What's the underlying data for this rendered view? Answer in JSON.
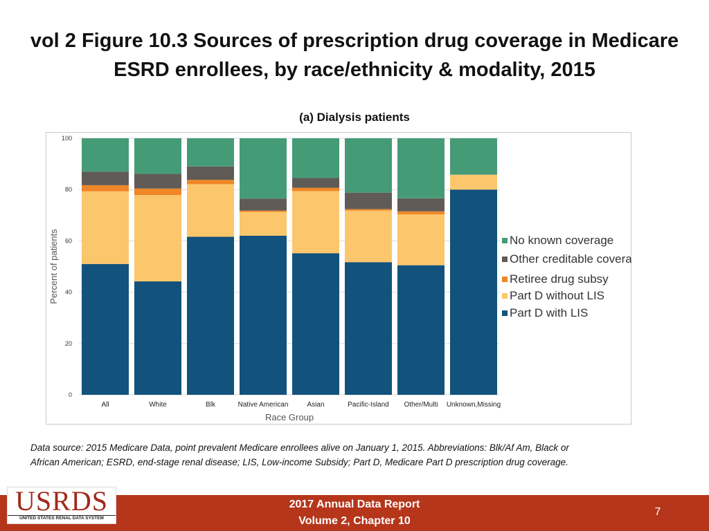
{
  "slide": {
    "title_line1": "vol 2 Figure 10.3 Sources of prescription drug coverage in Medicare",
    "title_line2": "ESRD enrollees, by race/ethnicity & modality, 2015",
    "footnote_line1": "Data source: 2015 Medicare Data, point prevalent Medicare enrollees alive on January 1, 2015. Abbreviations: Blk/Af Am, Black or",
    "footnote_line2": "African American; ESRD, end-stage renal disease; LIS, Low-income Subsidy; Part D, Medicare Part D prescription drug coverage."
  },
  "footer": {
    "logo_text": "USRDS",
    "logo_subtext": "UNITED STATES RENAL DATA SYSTEM",
    "report_line1": "2017 Annual Data Report",
    "report_line2": "Volume 2, Chapter 10",
    "page_number": "7",
    "bar_color": "#b5361b"
  },
  "chart_data": {
    "type": "bar",
    "stacked": true,
    "title": "(a) Dialysis patients",
    "xlabel": "Race Group",
    "ylabel": "Percent of patients",
    "ylim": [
      0,
      100
    ],
    "yticks": [
      0,
      20,
      40,
      60,
      80,
      100
    ],
    "legend_position": "right",
    "categories": [
      "All",
      "White",
      "Blk",
      "Native American",
      "Asian",
      "Pacific-Island",
      "Other/Multi",
      "Unknown,Missing"
    ],
    "series": [
      {
        "name": "Part D with LIS",
        "color": "#12527c",
        "values": [
          51,
          44.2,
          61.6,
          62,
          55.2,
          51.7,
          50.5,
          80
        ]
      },
      {
        "name": "Part D without LIS",
        "color": "#fcc66d",
        "values": [
          28.3,
          33.7,
          20.5,
          9.3,
          24.2,
          20.1,
          19.8,
          5.8
        ]
      },
      {
        "name": "Retiree drug subsidy",
        "color": "#ef8727",
        "values": [
          2.4,
          2.5,
          1.7,
          0.5,
          1.3,
          0.6,
          1.2,
          0
        ]
      },
      {
        "name": "Other creditable coverage",
        "color": "#605b57",
        "values": [
          5.3,
          5.7,
          5.2,
          4.7,
          3.8,
          6.4,
          5.1,
          0
        ]
      },
      {
        "name": "No known coverage",
        "color": "#469b77",
        "values": [
          13,
          13.9,
          11,
          23.5,
          15.5,
          21.2,
          23.4,
          14.2
        ]
      }
    ],
    "legend_labels": [
      "No known coverage",
      "Other creditable coverage",
      "Retiree drug subsy",
      "Part D without LIS",
      "Part D with LIS"
    ]
  }
}
